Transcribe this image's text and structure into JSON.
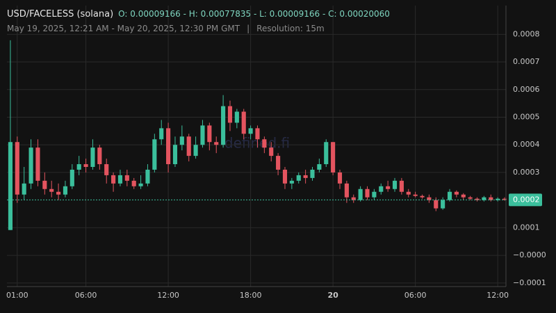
{
  "chart_data": {
    "type": "candlestick",
    "title": "USD/FACELESS (solana)",
    "ohlc_summary": "O: 0.00009166 - H: 0.00077835 - L: 0.00009166 - C: 0.00020060",
    "subtitle": "May 19, 2025, 12:21 AM - May 20, 2025, 12:30 PM GMT",
    "separator": "|",
    "resolution": "Resolution: 15m",
    "watermark": "defined.fi",
    "up_color": "#3bbf9c",
    "down_color": "#e3545f",
    "x": [
      "2025-05-19T00:30",
      "2025-05-19T01:00",
      "2025-05-19T01:30",
      "2025-05-19T02:00",
      "2025-05-19T02:30",
      "2025-05-19T03:00",
      "2025-05-19T03:30",
      "2025-05-19T04:00",
      "2025-05-19T04:30",
      "2025-05-19T05:00",
      "2025-05-19T05:30",
      "2025-05-19T06:00",
      "2025-05-19T06:30",
      "2025-05-19T07:00",
      "2025-05-19T07:30",
      "2025-05-19T08:00",
      "2025-05-19T08:30",
      "2025-05-19T09:00",
      "2025-05-19T09:30",
      "2025-05-19T10:00",
      "2025-05-19T10:30",
      "2025-05-19T11:00",
      "2025-05-19T11:30",
      "2025-05-19T12:00",
      "2025-05-19T12:30",
      "2025-05-19T13:00",
      "2025-05-19T13:30",
      "2025-05-19T14:00",
      "2025-05-19T14:30",
      "2025-05-19T15:00",
      "2025-05-19T15:30",
      "2025-05-19T16:00",
      "2025-05-19T16:30",
      "2025-05-19T17:00",
      "2025-05-19T17:30",
      "2025-05-19T18:00",
      "2025-05-19T18:30",
      "2025-05-19T19:00",
      "2025-05-19T19:30",
      "2025-05-19T20:00",
      "2025-05-19T20:30",
      "2025-05-19T21:00",
      "2025-05-19T21:30",
      "2025-05-19T22:00",
      "2025-05-19T22:30",
      "2025-05-19T23:00",
      "2025-05-19T23:30",
      "2025-05-20T00:00",
      "2025-05-20T00:30",
      "2025-05-20T01:00",
      "2025-05-20T01:30",
      "2025-05-20T02:00",
      "2025-05-20T02:30",
      "2025-05-20T03:00",
      "2025-05-20T03:30",
      "2025-05-20T04:00",
      "2025-05-20T04:30",
      "2025-05-20T05:00",
      "2025-05-20T05:30",
      "2025-05-20T06:00",
      "2025-05-20T06:30",
      "2025-05-20T07:00",
      "2025-05-20T07:30",
      "2025-05-20T08:00",
      "2025-05-20T08:30",
      "2025-05-20T09:00",
      "2025-05-20T09:30",
      "2025-05-20T10:00",
      "2025-05-20T10:30",
      "2025-05-20T11:00",
      "2025-05-20T11:30",
      "2025-05-20T12:00",
      "2025-05-20T12:30"
    ],
    "open": [
      9.17e-05,
      0.00041,
      0.00022,
      0.00026,
      0.00039,
      0.00027,
      0.00024,
      0.00023,
      0.00022,
      0.00025,
      0.00031,
      0.00033,
      0.00032,
      0.00039,
      0.00033,
      0.00029,
      0.00026,
      0.00029,
      0.00027,
      0.00025,
      0.00026,
      0.00031,
      0.00042,
      0.00046,
      0.00033,
      0.0004,
      0.00043,
      0.00036,
      0.0004,
      0.00047,
      0.00041,
      0.0004,
      0.00054,
      0.00048,
      0.00052,
      0.00044,
      0.00046,
      0.00042,
      0.00039,
      0.00036,
      0.00031,
      0.00026,
      0.00027,
      0.00029,
      0.00028,
      0.00031,
      0.00033,
      0.00041,
      0.0003,
      0.00026,
      0.00021,
      0.0002,
      0.00024,
      0.00021,
      0.00023,
      0.00025,
      0.00024,
      0.00027,
      0.00023,
      0.00022,
      0.000215,
      0.00021,
      0.0002,
      0.00017,
      0.0002,
      0.00023,
      0.00022,
      0.00021,
      0.000205,
      0.0002,
      0.00021,
      0.0002,
      0.000205
    ],
    "high": [
      0.00077835,
      0.00043,
      0.00032,
      0.00042,
      0.00042,
      0.0003,
      0.00027,
      0.00026,
      0.00027,
      0.00033,
      0.00036,
      0.00035,
      0.00042,
      0.0004,
      0.00035,
      0.0003,
      0.00031,
      0.00031,
      0.00028,
      0.00029,
      0.00033,
      0.00044,
      0.00049,
      0.00048,
      0.00043,
      0.00047,
      0.00044,
      0.00043,
      0.00049,
      0.00048,
      0.00043,
      0.00058,
      0.00056,
      0.00053,
      0.00053,
      0.00047,
      0.00047,
      0.00043,
      0.00041,
      0.00037,
      0.00032,
      0.00028,
      0.0003,
      0.00031,
      0.00032,
      0.00035,
      0.00042,
      0.00041,
      0.00031,
      0.00027,
      0.00022,
      0.00025,
      0.00025,
      0.00024,
      0.00026,
      0.00027,
      0.00028,
      0.00028,
      0.00024,
      0.00023,
      0.00022,
      0.00022,
      0.00021,
      0.00021,
      0.00024,
      0.000235,
      0.000225,
      0.000215,
      0.00021,
      0.000215,
      0.00022,
      0.00021,
      0.00021
    ],
    "low": [
      9.166e-05,
      0.00019,
      0.0002,
      0.00024,
      0.00025,
      0.00022,
      0.00021,
      0.0002,
      0.00021,
      0.00024,
      0.00029,
      0.0003,
      0.00031,
      0.00031,
      0.00026,
      0.00023,
      0.00025,
      0.00025,
      0.00024,
      0.00024,
      0.00025,
      0.0003,
      0.0004,
      0.0003,
      0.00032,
      0.00038,
      0.00034,
      0.00035,
      0.00039,
      0.00038,
      0.00037,
      0.00039,
      0.00045,
      0.00046,
      0.00042,
      0.00042,
      0.00039,
      0.00037,
      0.00034,
      0.00029,
      0.00024,
      0.00024,
      0.00026,
      0.00026,
      0.00027,
      0.0003,
      0.00032,
      0.00029,
      0.00024,
      0.00019,
      0.00019,
      0.000195,
      0.0002,
      0.0002,
      0.00022,
      0.00023,
      0.00023,
      0.00022,
      0.00021,
      0.00021,
      0.000205,
      0.00019,
      0.00016,
      0.000165,
      0.000195,
      0.00021,
      0.0002,
      0.0002,
      0.000195,
      0.000195,
      0.000195,
      0.000195,
      0.000198
    ],
    "close": [
      0.00041,
      0.00022,
      0.00026,
      0.00039,
      0.00027,
      0.00024,
      0.00023,
      0.00022,
      0.00025,
      0.00031,
      0.00033,
      0.00032,
      0.00039,
      0.00033,
      0.00029,
      0.00026,
      0.00029,
      0.00027,
      0.00025,
      0.00026,
      0.00031,
      0.00042,
      0.00046,
      0.00033,
      0.0004,
      0.00043,
      0.00036,
      0.0004,
      0.00047,
      0.00041,
      0.0004,
      0.00054,
      0.00048,
      0.00052,
      0.00044,
      0.00046,
      0.00042,
      0.00039,
      0.00036,
      0.00031,
      0.00026,
      0.00027,
      0.00029,
      0.00028,
      0.00031,
      0.00033,
      0.00041,
      0.0003,
      0.00026,
      0.00021,
      0.0002,
      0.00024,
      0.00021,
      0.00023,
      0.00025,
      0.00024,
      0.00027,
      0.00023,
      0.00022,
      0.000215,
      0.00021,
      0.0002,
      0.00017,
      0.0002,
      0.00023,
      0.00022,
      0.00021,
      0.000205,
      0.0002,
      0.00021,
      0.0002,
      0.000205,
      0.0002006
    ],
    "xlim": [
      "2025-05-19T00:15",
      "2025-05-20T12:36"
    ],
    "xticks": [
      {
        "value": "2025-05-19T01:00",
        "label": "01:00"
      },
      {
        "value": "2025-05-19T06:00",
        "label": "06:00"
      },
      {
        "value": "2025-05-19T12:00",
        "label": "12:00"
      },
      {
        "value": "2025-05-19T18:00",
        "label": "18:00"
      },
      {
        "value": "2025-05-20T00:00",
        "label": "20"
      },
      {
        "value": "2025-05-20T06:00",
        "label": "06:00"
      },
      {
        "value": "2025-05-20T12:00",
        "label": "12:00"
      }
    ],
    "ylim": [
      -0.000113,
      0.000904
    ],
    "yticks": [
      0.0008,
      0.0007,
      0.0006,
      0.0005,
      0.0004,
      0.0003,
      0.0001,
      {
        "value": 0,
        "label": "−0.0000"
      },
      {
        "value": -0.0001,
        "label": "−0.0001"
      }
    ],
    "last_price": {
      "value": 0.0002006,
      "label": "0.0002"
    },
    "grid": true
  }
}
